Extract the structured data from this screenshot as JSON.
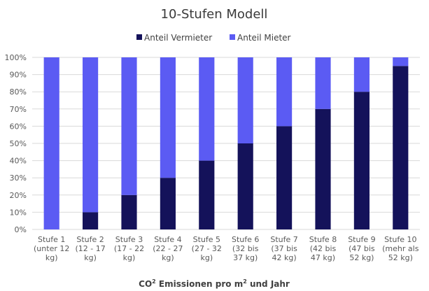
{
  "chart_data": {
    "type": "bar",
    "stacked": true,
    "title": "10-Stufen Modell",
    "xlabel_main": "CO",
    "xlabel_sup1": "2",
    "xlabel_mid": " Emissionen pro m",
    "xlabel_sup2": "2",
    "xlabel_end": " und Jahr",
    "ylabel": "",
    "ylim": [
      0,
      100
    ],
    "yticks": [
      "0%",
      "10%",
      "20%",
      "30%",
      "40%",
      "50%",
      "60%",
      "70%",
      "80%",
      "90%",
      "100%"
    ],
    "grid": true,
    "legend_position": "top",
    "categories": [
      [
        "Stufe 1",
        "(unter 12",
        "kg)"
      ],
      [
        "Stufe 2",
        "(12 - 17",
        "kg)"
      ],
      [
        "Stufe 3",
        "(17 - 22",
        "kg)"
      ],
      [
        "Stufe 4",
        "(22 - 27",
        "kg)"
      ],
      [
        "Stufe 5",
        "(27 - 32",
        "kg)"
      ],
      [
        "Stufe 6",
        "(32 bis",
        "37 kg)"
      ],
      [
        "Stufe 7",
        "(37 bis",
        "42 kg)"
      ],
      [
        "Stufe 8",
        "(42 bis",
        "47 kg)"
      ],
      [
        "Stufe 9",
        "(47 bis",
        "52 kg)"
      ],
      [
        "Stufe 10",
        "(mehr als",
        "52 kg)"
      ]
    ],
    "series": [
      {
        "name": "Anteil Vermieter",
        "color": "#14125a",
        "values": [
          0,
          10,
          20,
          30,
          40,
          50,
          60,
          70,
          80,
          95
        ]
      },
      {
        "name": "Anteil Mieter",
        "color": "#5b5bf3",
        "values": [
          100,
          90,
          80,
          70,
          60,
          50,
          40,
          30,
          20,
          5
        ]
      }
    ]
  }
}
